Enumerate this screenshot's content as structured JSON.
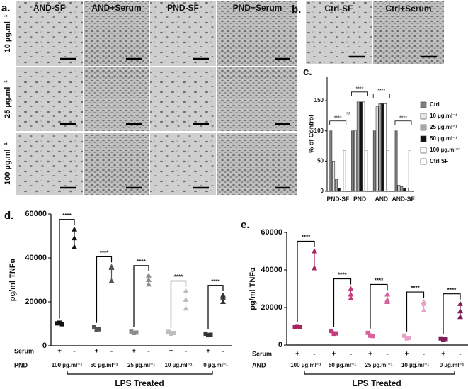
{
  "panels": {
    "a": {
      "label": "a.",
      "columns": [
        "AND-SF",
        "AND+Serum",
        "PND-SF",
        "PND+Serum"
      ],
      "rows": [
        "10 µg.ml⁻¹",
        "25 µg.ml⁻¹",
        "100 µg.ml⁻¹"
      ]
    },
    "b": {
      "label": "b.",
      "columns": [
        "Ctrl-SF",
        "Ctrl+Serum"
      ]
    }
  },
  "chart_data": [
    {
      "type": "bar",
      "label": "c.",
      "y_label": "% of Control",
      "categories": [
        "PND-SF",
        "PND",
        "AND",
        "AND-SF"
      ],
      "ylim": [
        0,
        190
      ],
      "yticks": [
        0,
        50,
        100,
        150
      ],
      "legend": "right",
      "series": [
        {
          "name": "Ctrl",
          "color": "#808080",
          "values": [
            100,
            100,
            100,
            100
          ]
        },
        {
          "name": "10 µg.ml⁻¹",
          "color": "#e6e6e6",
          "values": [
            50,
            100,
            140,
            10
          ]
        },
        {
          "name": "25 µg.ml⁻¹",
          "color": "#a8a8a8",
          "values": [
            20,
            148,
            145,
            8
          ]
        },
        {
          "name": "50 µg.ml⁻¹",
          "color": "#111111",
          "values": [
            5,
            148,
            145,
            5
          ]
        },
        {
          "name": "100 µg.ml⁻¹",
          "color": "#ffffff",
          "values": [
            5,
            148,
            145,
            5
          ]
        },
        {
          "name": "Ctrl SF",
          "color": "#ffffff",
          "values": [
            68,
            68,
            68,
            68
          ]
        }
      ],
      "significance": [
        "****",
        "****",
        "****",
        "****"
      ],
      "ns_label": "ns"
    },
    {
      "type": "dotplot",
      "label": "d.",
      "y_label": "pg/ml TNFα",
      "ylim": [
        0,
        60000
      ],
      "yticks": [
        0,
        20000,
        40000,
        60000
      ],
      "row_labels": [
        "Serum",
        "PND"
      ],
      "serum_signs": [
        "+",
        "-"
      ],
      "footer": "LPS Treated",
      "groups": [
        {
          "name": "100 µg.ml⁻¹",
          "color": "#111111",
          "plus": [
            10200,
            10500,
            9800
          ],
          "minus": [
            53000,
            49000,
            45000
          ],
          "significance": "****"
        },
        {
          "name": "50 µg.ml⁻¹",
          "color": "#555555",
          "plus": [
            8500,
            7200,
            7500
          ],
          "minus": [
            36000,
            35500,
            29500
          ],
          "significance": "****"
        },
        {
          "name": "25 µg.ml⁻¹",
          "color": "#8c8c8c",
          "plus": [
            6500,
            5800,
            6000
          ],
          "minus": [
            32000,
            30000,
            28000
          ],
          "significance": "****"
        },
        {
          "name": "10 µg.ml⁻¹",
          "color": "#bdbdbd",
          "plus": [
            6300,
            5500,
            5800
          ],
          "minus": [
            25000,
            21000,
            17000
          ],
          "significance": "****"
        },
        {
          "name": "0 µg.ml⁻¹",
          "color": "#333333",
          "plus": [
            5500,
            4800,
            5000
          ],
          "minus": [
            23000,
            22000,
            20000
          ],
          "significance": "****"
        }
      ]
    },
    {
      "type": "dotplot",
      "label": "e.",
      "y_label": "pg/ml TNFα",
      "ylim": [
        0,
        60000
      ],
      "yticks": [
        0,
        20000,
        40000,
        60000
      ],
      "row_labels": [
        "Serum",
        "AND"
      ],
      "serum_signs": [
        "+",
        "-"
      ],
      "footer": "LPS Treated",
      "groups": [
        {
          "name": "100 µg.ml⁻¹",
          "color": "#a8205e",
          "plus": [
            9800,
            10000,
            9500
          ],
          "minus": [
            50000,
            41000,
            41000
          ],
          "significance": "****"
        },
        {
          "name": "50 µg.ml⁻¹",
          "color": "#c43a7c",
          "plus": [
            7500,
            6000,
            6200
          ],
          "minus": [
            30000,
            27000,
            25000
          ],
          "significance": "****"
        },
        {
          "name": "25 µg.ml⁻¹",
          "color": "#d8609c",
          "plus": [
            6500,
            5000,
            4800
          ],
          "minus": [
            27000,
            24000,
            23000
          ],
          "significance": "****"
        },
        {
          "name": "10 µg.ml⁻¹",
          "color": "#e8a0c6",
          "plus": [
            5000,
            3500,
            3800
          ],
          "minus": [
            23000,
            22000,
            18500
          ],
          "significance": "****"
        },
        {
          "name": "0 µg.ml⁻¹",
          "color": "#7a1f5a",
          "plus": [
            3500,
            3000,
            3200
          ],
          "minus": [
            22000,
            18000,
            15000
          ],
          "significance": "****"
        }
      ]
    }
  ]
}
